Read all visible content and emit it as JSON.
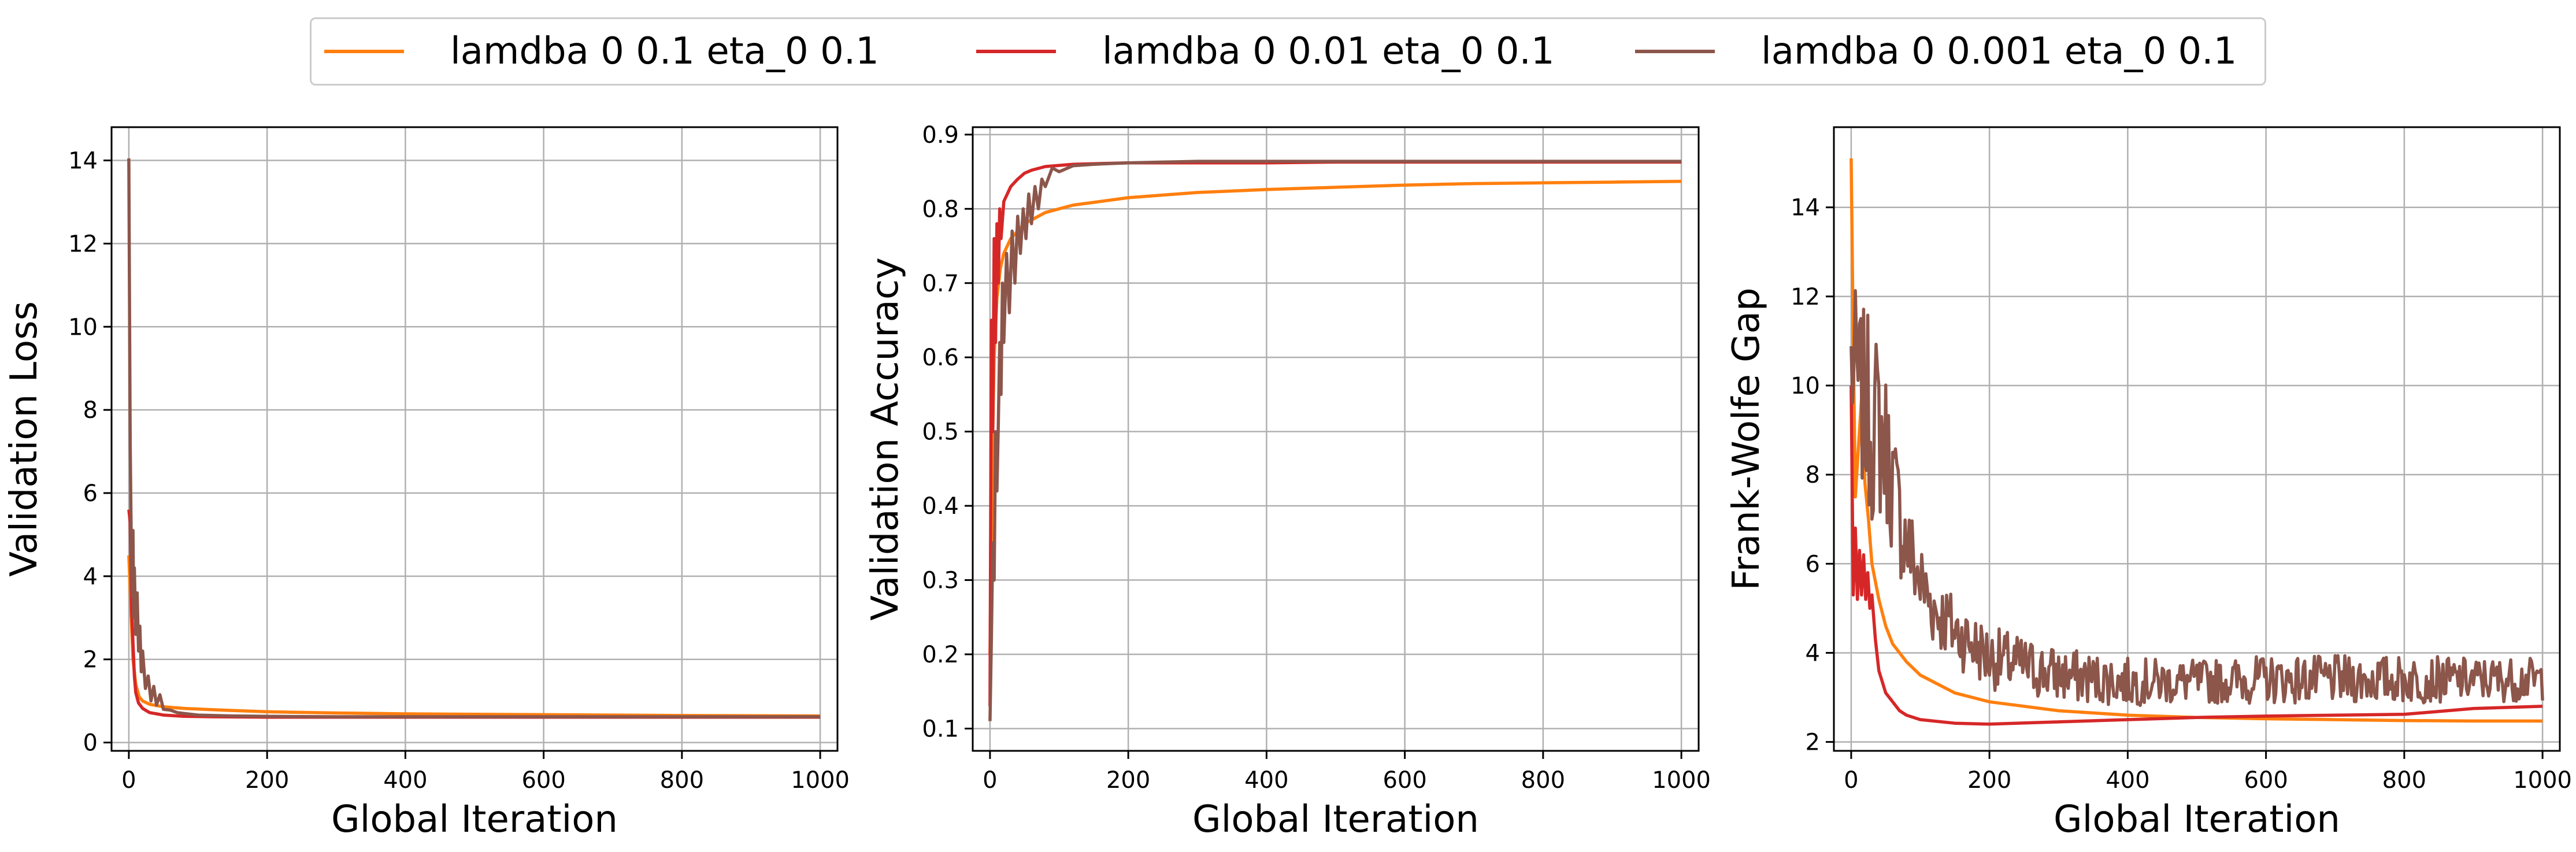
{
  "legend": {
    "entries": [
      {
        "label": "lamdba 0 0.1 eta_0 0.1",
        "color": "#ff7f0e"
      },
      {
        "label": "lamdba 0 0.01 eta_0 0.1",
        "color": "#d62728"
      },
      {
        "label": "lamdba 0 0.001 eta_0 0.1",
        "color": "#8c564b"
      }
    ],
    "placement": "top-center"
  },
  "chart_data": [
    {
      "type": "line",
      "xlabel": "Global Iteration",
      "ylabel": "Validation Loss",
      "xlim": [
        -25,
        1025
      ],
      "ylim": [
        -0.2,
        14.8
      ],
      "xticks": [
        0,
        200,
        400,
        600,
        800,
        1000
      ],
      "yticks": [
        0,
        2,
        4,
        6,
        8,
        10,
        12,
        14
      ],
      "grid": true,
      "series": [
        {
          "name": "lamdba 0 0.1 eta_0 0.1",
          "color": "#ff7f0e",
          "x": [
            0,
            3,
            6,
            10,
            15,
            20,
            30,
            50,
            80,
            120,
            200,
            300,
            400,
            500,
            600,
            700,
            800,
            900,
            1000
          ],
          "y": [
            4.5,
            3.2,
            2.0,
            1.4,
            1.1,
            1.0,
            0.92,
            0.86,
            0.82,
            0.79,
            0.74,
            0.71,
            0.69,
            0.68,
            0.67,
            0.66,
            0.65,
            0.645,
            0.64
          ]
        },
        {
          "name": "lamdba 0 0.01 eta_0 0.1",
          "color": "#d62728",
          "x": [
            0,
            2,
            4,
            6,
            8,
            10,
            14,
            20,
            30,
            50,
            80,
            120,
            200,
            300,
            400,
            500,
            600,
            700,
            800,
            900,
            1000
          ],
          "y": [
            5.6,
            5.3,
            3.2,
            2.4,
            1.6,
            1.2,
            0.95,
            0.82,
            0.72,
            0.66,
            0.63,
            0.62,
            0.61,
            0.61,
            0.61,
            0.61,
            0.61,
            0.61,
            0.61,
            0.61,
            0.61
          ]
        },
        {
          "name": "lamdba 0 0.001 eta_0 0.1",
          "color": "#8c564b",
          "x": [
            0,
            1,
            2,
            3,
            4,
            5,
            6,
            7,
            8,
            10,
            12,
            14,
            16,
            18,
            20,
            24,
            28,
            32,
            36,
            40,
            45,
            50,
            60,
            70,
            80,
            100,
            150,
            200,
            300,
            400,
            500,
            600,
            700,
            800,
            900,
            1000
          ],
          "y": [
            14.05,
            10.5,
            7.2,
            5.6,
            4.2,
            3.5,
            5.1,
            3.0,
            4.2,
            2.6,
            3.6,
            2.2,
            2.8,
            1.7,
            2.2,
            1.3,
            1.6,
            1.0,
            1.35,
            0.9,
            1.15,
            0.8,
            0.78,
            0.72,
            0.7,
            0.66,
            0.64,
            0.63,
            0.62,
            0.62,
            0.62,
            0.62,
            0.62,
            0.62,
            0.62,
            0.62
          ]
        }
      ]
    },
    {
      "type": "line",
      "xlabel": "Global Iteration",
      "ylabel": "Validation Accuracy",
      "xlim": [
        -25,
        1025
      ],
      "ylim": [
        0.07,
        0.91
      ],
      "xticks": [
        0,
        200,
        400,
        600,
        800,
        1000
      ],
      "yticks": [
        0.1,
        0.2,
        0.3,
        0.4,
        0.5,
        0.6,
        0.7,
        0.8,
        0.9
      ],
      "grid": true,
      "series": [
        {
          "name": "lamdba 0 0.1 eta_0 0.1",
          "color": "#ff7f0e",
          "x": [
            0,
            3,
            6,
            10,
            15,
            20,
            30,
            50,
            80,
            120,
            200,
            300,
            400,
            500,
            600,
            700,
            800,
            900,
            1000
          ],
          "y": [
            0.2,
            0.45,
            0.6,
            0.68,
            0.72,
            0.74,
            0.76,
            0.78,
            0.795,
            0.805,
            0.815,
            0.822,
            0.826,
            0.829,
            0.832,
            0.834,
            0.835,
            0.836,
            0.837
          ]
        },
        {
          "name": "lamdba 0 0.01 eta_0 0.1",
          "color": "#d62728",
          "x": [
            0,
            2,
            4,
            6,
            8,
            10,
            12,
            14,
            16,
            20,
            25,
            30,
            40,
            50,
            60,
            80,
            120,
            200,
            300,
            400,
            500,
            600,
            700,
            800,
            900,
            1000
          ],
          "y": [
            0.13,
            0.65,
            0.5,
            0.76,
            0.62,
            0.78,
            0.7,
            0.8,
            0.76,
            0.81,
            0.82,
            0.83,
            0.84,
            0.848,
            0.852,
            0.857,
            0.86,
            0.862,
            0.862,
            0.862,
            0.863,
            0.863,
            0.863,
            0.863,
            0.863,
            0.863
          ]
        },
        {
          "name": "lamdba 0 0.001 eta_0 0.1",
          "color": "#8c564b",
          "x": [
            0,
            2,
            4,
            6,
            8,
            10,
            12,
            14,
            16,
            18,
            20,
            24,
            28,
            32,
            36,
            40,
            44,
            48,
            52,
            56,
            60,
            65,
            70,
            75,
            80,
            90,
            100,
            120,
            150,
            200,
            250,
            300,
            400,
            500,
            600,
            700,
            800,
            900,
            1000
          ],
          "y": [
            0.11,
            0.22,
            0.35,
            0.3,
            0.5,
            0.42,
            0.51,
            0.62,
            0.55,
            0.7,
            0.62,
            0.74,
            0.66,
            0.77,
            0.7,
            0.79,
            0.74,
            0.8,
            0.76,
            0.82,
            0.78,
            0.83,
            0.8,
            0.84,
            0.83,
            0.855,
            0.85,
            0.858,
            0.86,
            0.862,
            0.863,
            0.864,
            0.864,
            0.864,
            0.864,
            0.864,
            0.864,
            0.864,
            0.864
          ]
        }
      ]
    },
    {
      "type": "line",
      "xlabel": "Global Iteration",
      "ylabel": "Frank-Wolfe Gap",
      "xlim": [
        -25,
        1025
      ],
      "ylim": [
        1.8,
        15.8
      ],
      "xticks": [
        0,
        200,
        400,
        600,
        800,
        1000
      ],
      "yticks": [
        2,
        4,
        6,
        8,
        10,
        12,
        14
      ],
      "grid": true,
      "series": [
        {
          "name": "lamdba 0 0.1 eta_0 0.1",
          "color": "#ff7f0e",
          "x": [
            0,
            3,
            6,
            10,
            15,
            20,
            25,
            30,
            40,
            50,
            60,
            80,
            100,
            150,
            200,
            300,
            400,
            500,
            600,
            700,
            800,
            900,
            1000
          ],
          "y": [
            15.1,
            11.0,
            7.5,
            8.5,
            9.7,
            7.8,
            7.0,
            6.0,
            5.2,
            4.6,
            4.2,
            3.8,
            3.5,
            3.1,
            2.9,
            2.7,
            2.6,
            2.55,
            2.52,
            2.5,
            2.48,
            2.47,
            2.47
          ]
        },
        {
          "name": "lamdba 0 0.01 eta_0 0.1",
          "color": "#d62728",
          "x": [
            0,
            3,
            6,
            9,
            12,
            15,
            18,
            21,
            24,
            27,
            30,
            35,
            40,
            50,
            60,
            70,
            80,
            100,
            150,
            200,
            300,
            400,
            500,
            600,
            700,
            800,
            900,
            1000
          ],
          "y": [
            10.0,
            5.3,
            6.8,
            5.2,
            6.3,
            5.3,
            6.2,
            5.2,
            5.8,
            5.0,
            5.3,
            4.3,
            3.6,
            3.1,
            2.9,
            2.7,
            2.6,
            2.5,
            2.42,
            2.4,
            2.45,
            2.5,
            2.55,
            2.58,
            2.6,
            2.62,
            2.75,
            2.8
          ]
        },
        {
          "name": "lamdba 0 0.001 eta_0 0.1",
          "color": "#8c564b",
          "noise": true,
          "x": [
            0,
            10,
            20,
            30,
            40,
            50,
            60,
            70,
            80,
            100,
            120,
            150,
            200,
            300,
            400,
            500,
            600,
            700,
            800,
            900,
            1000
          ],
          "y": [
            10.5,
            10.0,
            9.5,
            9.2,
            9.0,
            8.6,
            7.8,
            7.0,
            6.5,
            5.6,
            5.0,
            4.5,
            3.9,
            3.5,
            3.35,
            3.35,
            3.4,
            3.4,
            3.4,
            3.4,
            3.4
          ],
          "spread": [
            2.2,
            2.2,
            2.4,
            2.6,
            2.3,
            2.0,
            1.8,
            1.5,
            1.3,
            1.1,
            1.0,
            0.9,
            0.8,
            0.7,
            0.6,
            0.55,
            0.6,
            0.6,
            0.6,
            0.55,
            0.55
          ]
        }
      ]
    }
  ]
}
